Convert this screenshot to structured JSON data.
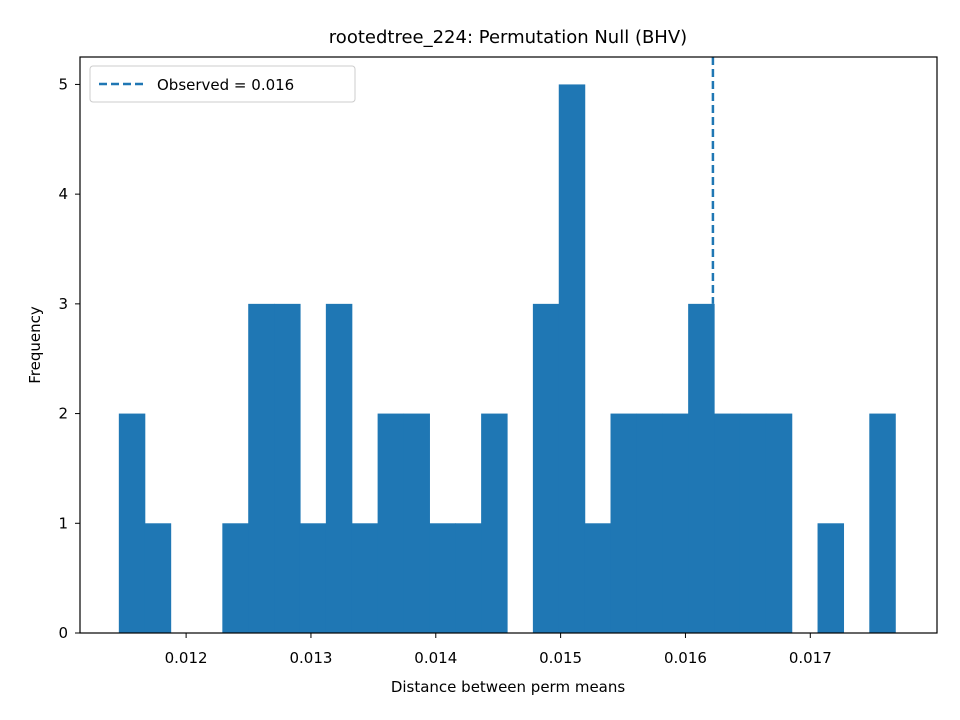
{
  "chart_data": {
    "type": "bar",
    "title": "rootedtree_224: Permutation Null (BHV)",
    "xlabel": "Distance between perm means",
    "ylabel": "Frequency",
    "bin_start": 0.011461,
    "bin_width": 0.0002073,
    "counts": [
      2,
      1,
      0,
      0,
      1,
      3,
      3,
      1,
      3,
      1,
      2,
      2,
      1,
      1,
      2,
      0,
      3,
      5,
      1,
      2,
      2,
      2,
      3,
      2,
      2,
      2,
      0,
      1,
      0,
      2
    ],
    "xlim": [
      0.01115,
      0.018015
    ],
    "ylim": [
      0,
      5.25
    ],
    "xticks": [
      0.012,
      0.013,
      0.014,
      0.015,
      0.016,
      0.017
    ],
    "xtick_labels": [
      "0.012",
      "0.013",
      "0.014",
      "0.015",
      "0.016",
      "0.017"
    ],
    "yticks": [
      0,
      1,
      2,
      3,
      4,
      5
    ],
    "ytick_labels": [
      "0",
      "1",
      "2",
      "3",
      "4",
      "5"
    ],
    "observed": 0.01622,
    "legend": {
      "label": "Observed = 0.016",
      "placement": "upper-left"
    },
    "bar_color": "#1f77b4",
    "line_color": "#1f77b4",
    "grid": false
  }
}
